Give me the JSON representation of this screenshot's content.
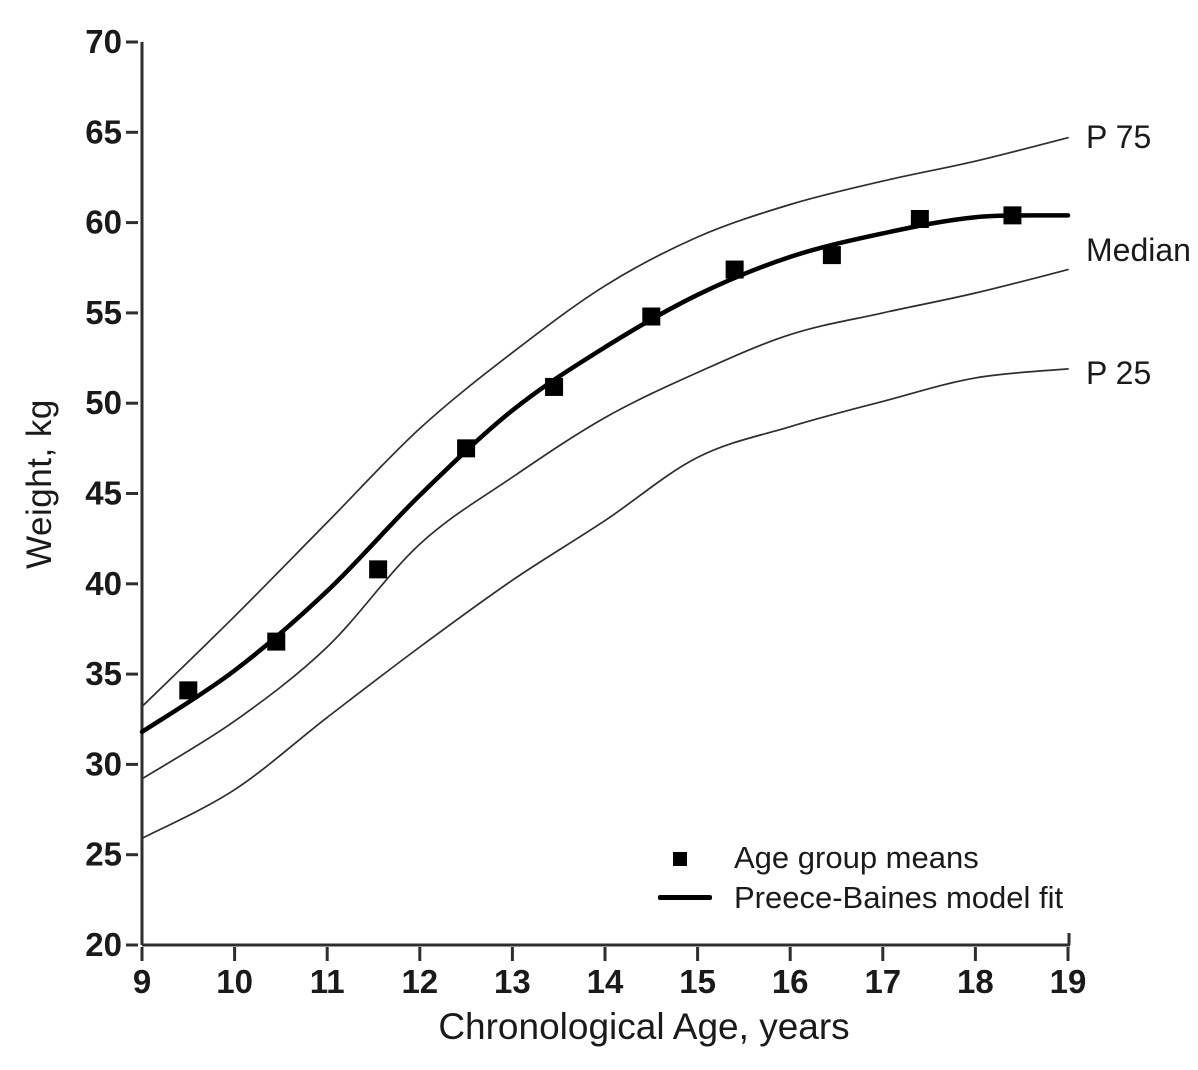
{
  "y_axis": {
    "label": "Weight, kg",
    "min": 20,
    "max": 70,
    "step": 5,
    "ticks": [
      20,
      25,
      30,
      35,
      40,
      45,
      50,
      55,
      60,
      65,
      70
    ]
  },
  "x_axis": {
    "label": "Chronological Age, years",
    "min": 9,
    "max": 19,
    "step": 1,
    "ticks": [
      9,
      10,
      11,
      12,
      13,
      14,
      15,
      16,
      17,
      18,
      19
    ]
  },
  "curve_labels": {
    "p75": "P 75",
    "median": "Median",
    "p25": "P 25"
  },
  "legend": {
    "marker_label": "Age group means",
    "line_label": "Preece-Baines model fit"
  },
  "colors": {
    "axis": "#2e2e2e",
    "thin_curve": "#2e2e2e",
    "thick_curve": "#000000",
    "marker": "#000000",
    "text": "#1a1a1a"
  },
  "chart_data": {
    "type": "line",
    "title": "",
    "xlabel": "Chronological Age, years",
    "ylabel": "Weight, kg",
    "xlim": [
      9,
      19
    ],
    "ylim": [
      20,
      70
    ],
    "grid": false,
    "legend_position": "bottom-right",
    "x": [
      9,
      10,
      11,
      12,
      13,
      14,
      15,
      16,
      17,
      18,
      19
    ],
    "series": [
      {
        "name": "P 75",
        "style": "thin",
        "values": [
          33.2,
          38.2,
          43.4,
          48.6,
          52.8,
          56.5,
          59.2,
          61.0,
          62.3,
          63.4,
          64.7
        ]
      },
      {
        "name": "Preece-Baines model fit",
        "style": "thick",
        "values": [
          31.8,
          35.2,
          39.6,
          44.9,
          49.6,
          53.1,
          56.0,
          58.1,
          59.4,
          60.3,
          60.4
        ]
      },
      {
        "name": "Median",
        "style": "thin",
        "values": [
          29.2,
          32.4,
          36.5,
          42.2,
          45.9,
          49.2,
          51.7,
          53.8,
          55.0,
          56.1,
          57.4
        ]
      },
      {
        "name": "P 25",
        "style": "thin",
        "values": [
          25.9,
          28.6,
          32.6,
          36.5,
          40.2,
          43.5,
          47.0,
          48.7,
          50.1,
          51.4,
          51.9
        ]
      }
    ],
    "scatter": {
      "name": "Age group means",
      "points": [
        [
          9.5,
          34.1
        ],
        [
          10.45,
          36.8
        ],
        [
          11.55,
          40.8
        ],
        [
          12.5,
          47.5
        ],
        [
          13.45,
          50.9
        ],
        [
          14.5,
          54.8
        ],
        [
          15.4,
          57.4
        ],
        [
          16.45,
          58.2
        ],
        [
          17.4,
          60.2
        ],
        [
          18.4,
          60.4
        ]
      ]
    }
  }
}
